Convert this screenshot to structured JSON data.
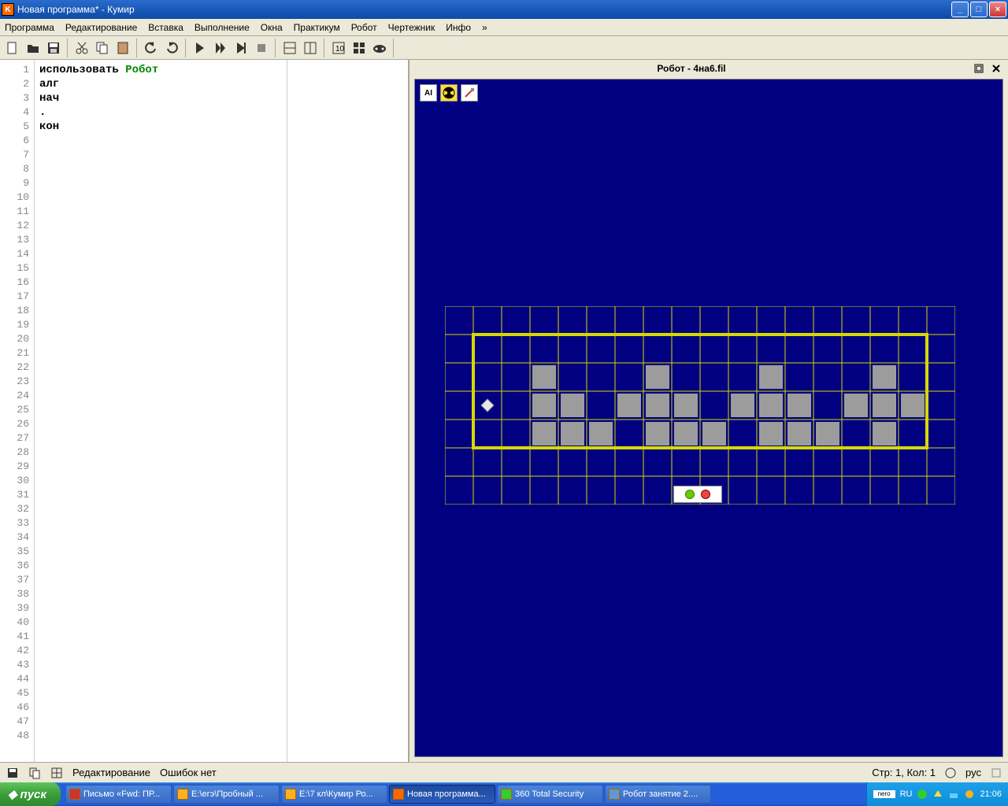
{
  "window": {
    "title": "Новая программа* - Кумир"
  },
  "menu": {
    "items": [
      "Программа",
      "Редактирование",
      "Вставка",
      "Выполнение",
      "Окна",
      "Практикум",
      "Робот",
      "Чертежник",
      "Инфо",
      "»"
    ]
  },
  "toolbar": {
    "icons": [
      "new-file",
      "open-file",
      "save-file",
      "sep",
      "cut",
      "copy",
      "paste",
      "sep",
      "undo",
      "redo",
      "sep",
      "run",
      "step",
      "step-into",
      "stop",
      "sep",
      "panel1",
      "panel2",
      "sep",
      "layout1",
      "layout2",
      "gamepad",
      "sep",
      "spacer"
    ]
  },
  "editor": {
    "lines": [
      {
        "n": 1,
        "segments": [
          {
            "t": "использовать ",
            "c": "#000"
          },
          {
            "t": "Робот",
            "c": "#008800"
          }
        ]
      },
      {
        "n": 2,
        "segments": [
          {
            "t": "алг",
            "c": "#000"
          }
        ]
      },
      {
        "n": 3,
        "segments": [
          {
            "t": "нач",
            "c": "#000"
          }
        ]
      },
      {
        "n": 4,
        "segments": [
          {
            "t": ".",
            "c": "#000"
          }
        ]
      },
      {
        "n": 5,
        "segments": [
          {
            "t": "кон",
            "c": "#000"
          }
        ]
      }
    ],
    "total_lines": 48
  },
  "robot": {
    "title": "Робот - 4на6.fil",
    "tools": [
      "AI",
      "rad",
      "pen"
    ],
    "grid": {
      "cell": 36,
      "gap": 1,
      "outer_rows": 7,
      "outer_cols": 18,
      "border_color": "#d8d800",
      "bg_color": "#000080",
      "painted_color": "#9c9c9c",
      "robot_color": "#e8e8e8",
      "boundary": {
        "row_start": 1,
        "row_end": 5,
        "col_start": 1,
        "col_end": 17
      },
      "robot": {
        "row": 3,
        "col": 1
      },
      "painted": [
        [
          2,
          3
        ],
        [
          2,
          7
        ],
        [
          2,
          11
        ],
        [
          2,
          15
        ],
        [
          3,
          3
        ],
        [
          3,
          4
        ],
        [
          3,
          6
        ],
        [
          3,
          7
        ],
        [
          3,
          8
        ],
        [
          3,
          10
        ],
        [
          3,
          11
        ],
        [
          3,
          12
        ],
        [
          3,
          14
        ],
        [
          3,
          15
        ],
        [
          3,
          16
        ],
        [
          4,
          3
        ],
        [
          4,
          4
        ],
        [
          4,
          5
        ],
        [
          4,
          7
        ],
        [
          4,
          8
        ],
        [
          4,
          9
        ],
        [
          4,
          11
        ],
        [
          4,
          12
        ],
        [
          4,
          13
        ],
        [
          4,
          15
        ]
      ]
    }
  },
  "status": {
    "mode": "Редактирование",
    "errors": "Ошибок нет",
    "pos": "Стр: 1, Кол: 1",
    "lang_ind": "рус"
  },
  "taskbar": {
    "start": "пуск",
    "items": [
      {
        "label": "Письмо «Fwd: ПР...",
        "ico": "#c33"
      },
      {
        "label": "E:\\егэ\\Пробный ...",
        "ico": "#ffb020"
      },
      {
        "label": "E:\\7 кл\\Кумир Ро...",
        "ico": "#ffb020"
      },
      {
        "label": "Новая программа...",
        "ico": "#ff6600",
        "active": true
      },
      {
        "label": "360 Total Security",
        "ico": "#3c3"
      },
      {
        "label": "Робот занятие 2....",
        "ico": "#5b9bd5"
      }
    ],
    "tray": {
      "lang": "RU",
      "clock": "21:06",
      "nero": "nero"
    }
  },
  "colors": {
    "titlebar": "#1a5ab8",
    "menu_bg": "#ece9d8",
    "robot_bg": "#000080",
    "grid_line": "#d8d800"
  }
}
